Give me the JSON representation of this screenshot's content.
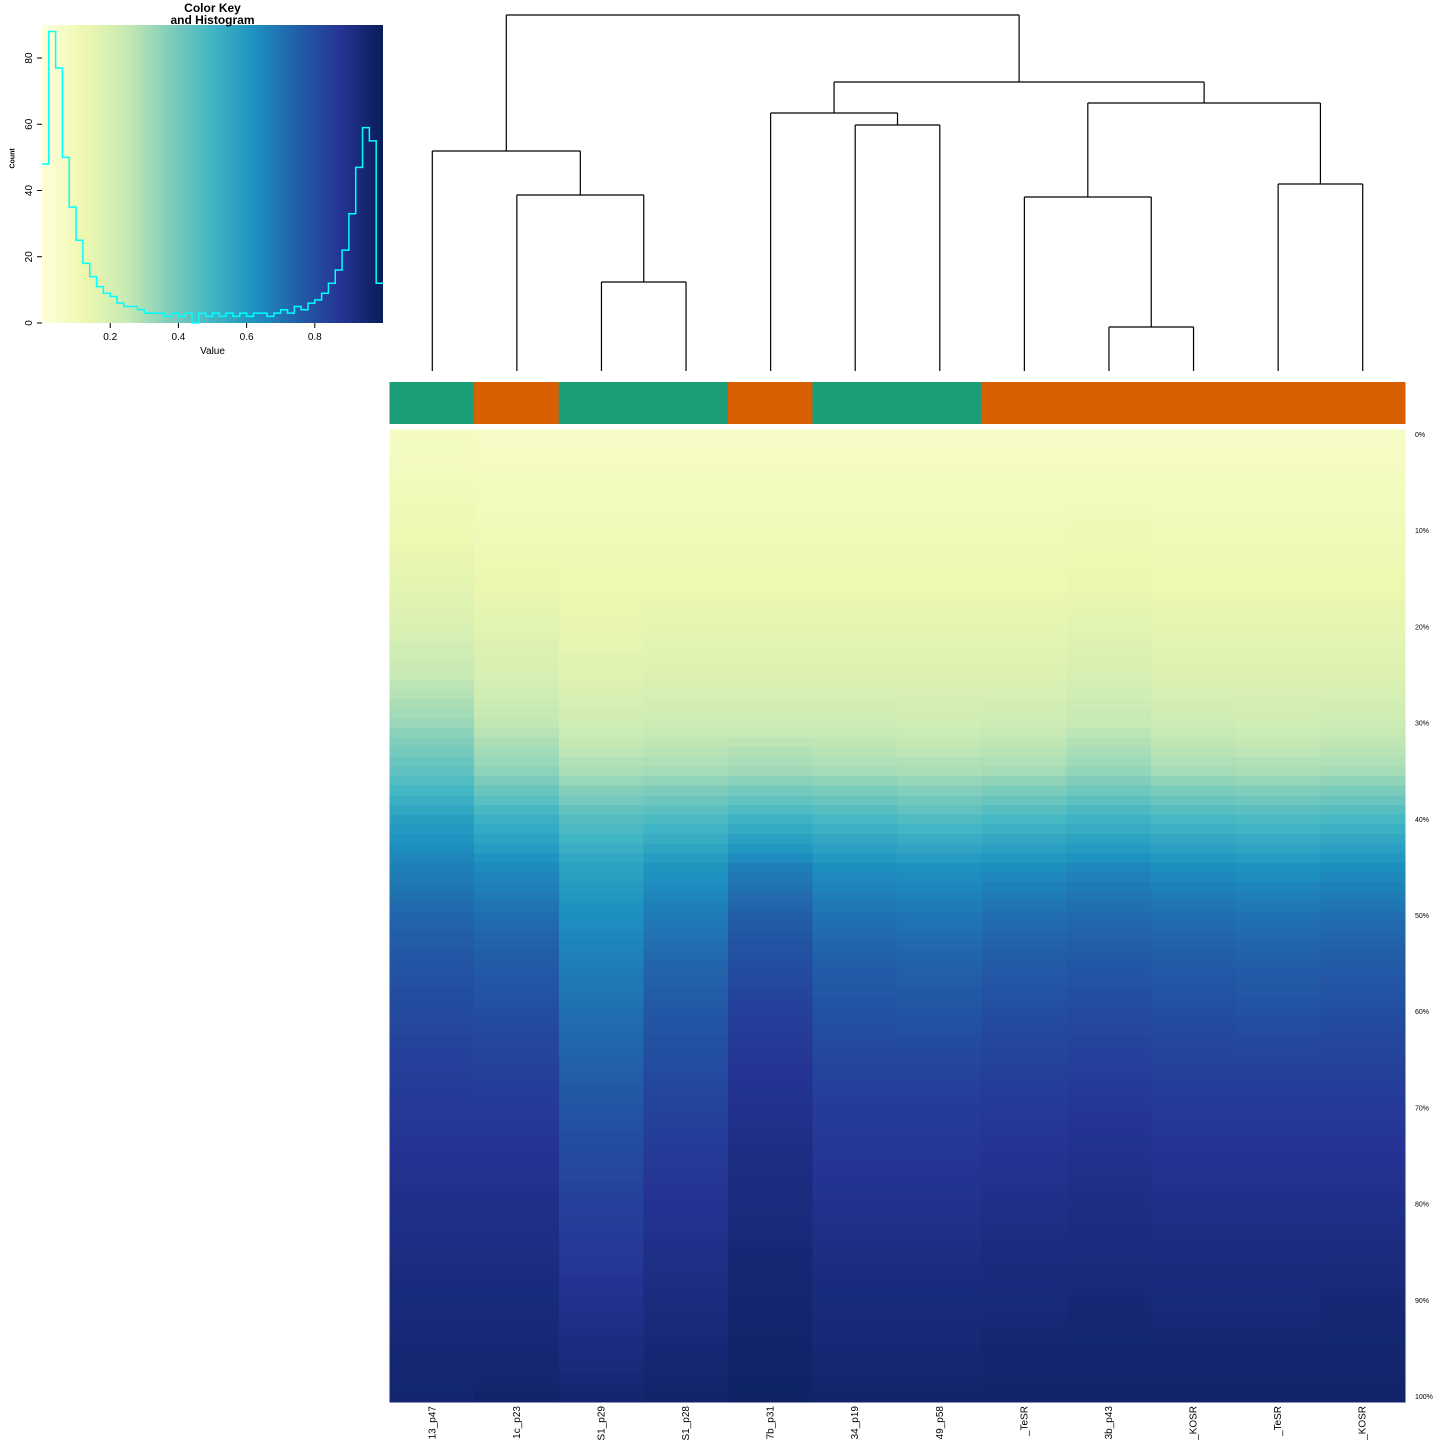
{
  "key": {
    "title_line1": "Color Key",
    "title_line2": "and Histogram",
    "xlabel": "Value",
    "ylabel": "Count",
    "x_tick_labels": [
      "0.2",
      "0.4",
      "0.6",
      "0.8"
    ],
    "x_tick_values": [
      0.2,
      0.4,
      0.6,
      0.8
    ],
    "y_tick_labels": [
      "0",
      "20",
      "40",
      "60",
      "80"
    ],
    "y_tick_values": [
      0,
      20,
      40,
      60,
      80
    ]
  },
  "palette": {
    "name": "YlGnBu",
    "stops": [
      "#ffffd9",
      "#edf8b1",
      "#c7e9b4",
      "#7fcdbb",
      "#41b6c4",
      "#1d91c0",
      "#225ea8",
      "#253494",
      "#081d58"
    ]
  },
  "side_color_legend": {
    "teal": "#1B9E77",
    "orange": "#D95F02"
  },
  "line_colors": {
    "histogram": "#00ffff",
    "dendrogram": "#000000"
  },
  "chart_data": [
    {
      "type": "bar",
      "title": "Color Key and Histogram",
      "xlabel": "Value",
      "ylabel": "Count",
      "style": "step-frequency-line over YlGnBu gradient strip",
      "xlim": [
        0,
        1
      ],
      "ylim": [
        0,
        88
      ],
      "bin_width": 0.02,
      "x": [
        0.01,
        0.03,
        0.05,
        0.07,
        0.09,
        0.11,
        0.13,
        0.15,
        0.17,
        0.19,
        0.21,
        0.23,
        0.25,
        0.27,
        0.29,
        0.31,
        0.33,
        0.35,
        0.37,
        0.39,
        0.41,
        0.43,
        0.45,
        0.47,
        0.49,
        0.51,
        0.53,
        0.55,
        0.57,
        0.59,
        0.61,
        0.63,
        0.65,
        0.67,
        0.69,
        0.71,
        0.73,
        0.75,
        0.77,
        0.79,
        0.81,
        0.83,
        0.85,
        0.87,
        0.89,
        0.91,
        0.93,
        0.95,
        0.97,
        0.99
      ],
      "values": [
        48,
        88,
        77,
        50,
        35,
        25,
        18,
        14,
        11,
        9,
        8,
        6,
        5,
        5,
        4,
        3,
        3,
        3,
        2,
        3,
        2,
        3,
        0,
        3,
        2,
        3,
        2,
        3,
        2,
        3,
        2,
        3,
        3,
        2,
        3,
        4,
        3,
        5,
        4,
        6,
        7,
        9,
        12,
        16,
        22,
        33,
        47,
        59,
        55,
        12
      ]
    },
    {
      "type": "heatmap",
      "description": "Column-wise cumulative value distribution: percentile (rows, 0-100%) vs value (color, YlGnBu 0-1)",
      "columns": [
        "13_p47",
        "1c_p23",
        "S1_p29",
        "S1_p28",
        "7b_p31",
        "34_p19",
        "49_p58",
        "_TeSR",
        "3b_p43",
        "_KOSR",
        "_TeSR",
        "_KOSR"
      ],
      "col_side_groups": [
        "teal",
        "orange",
        "teal",
        "teal",
        "orange",
        "teal",
        "teal",
        "orange",
        "orange",
        "orange",
        "orange",
        "orange"
      ],
      "row_labels": [
        "0%",
        "10%",
        "20%",
        "30%",
        "40%",
        "50%",
        "60%",
        "70%",
        "80%",
        "90%",
        "100%"
      ],
      "percentiles": [
        0,
        5,
        10,
        15,
        20,
        25,
        30,
        35,
        40,
        45,
        50,
        55,
        60,
        65,
        70,
        75,
        80,
        85,
        90,
        95,
        100
      ],
      "value_range": [
        0,
        1
      ],
      "values_by_column": [
        [
          0.07,
          0.09,
          0.12,
          0.15,
          0.19,
          0.25,
          0.33,
          0.44,
          0.58,
          0.67,
          0.73,
          0.78,
          0.81,
          0.84,
          0.86,
          0.88,
          0.9,
          0.91,
          0.93,
          0.94,
          0.95
        ],
        [
          0.06,
          0.08,
          0.1,
          0.13,
          0.16,
          0.2,
          0.26,
          0.35,
          0.52,
          0.64,
          0.71,
          0.76,
          0.8,
          0.83,
          0.86,
          0.88,
          0.9,
          0.91,
          0.93,
          0.94,
          0.96
        ],
        [
          0.06,
          0.08,
          0.1,
          0.12,
          0.14,
          0.17,
          0.22,
          0.3,
          0.46,
          0.57,
          0.63,
          0.67,
          0.71,
          0.74,
          0.78,
          0.81,
          0.84,
          0.86,
          0.89,
          0.92,
          0.95
        ],
        [
          0.06,
          0.08,
          0.1,
          0.12,
          0.15,
          0.18,
          0.23,
          0.31,
          0.48,
          0.61,
          0.68,
          0.73,
          0.77,
          0.8,
          0.83,
          0.86,
          0.88,
          0.9,
          0.92,
          0.94,
          0.96
        ],
        [
          0.06,
          0.08,
          0.1,
          0.12,
          0.15,
          0.18,
          0.23,
          0.32,
          0.51,
          0.67,
          0.75,
          0.8,
          0.84,
          0.87,
          0.89,
          0.91,
          0.92,
          0.94,
          0.95,
          0.96,
          0.97
        ],
        [
          0.06,
          0.08,
          0.1,
          0.12,
          0.15,
          0.18,
          0.23,
          0.31,
          0.49,
          0.63,
          0.7,
          0.75,
          0.79,
          0.82,
          0.85,
          0.87,
          0.89,
          0.91,
          0.93,
          0.94,
          0.96
        ],
        [
          0.06,
          0.08,
          0.1,
          0.12,
          0.15,
          0.18,
          0.22,
          0.3,
          0.47,
          0.62,
          0.69,
          0.74,
          0.78,
          0.82,
          0.85,
          0.87,
          0.89,
          0.91,
          0.93,
          0.94,
          0.96
        ],
        [
          0.06,
          0.08,
          0.1,
          0.12,
          0.15,
          0.18,
          0.23,
          0.31,
          0.49,
          0.63,
          0.71,
          0.76,
          0.8,
          0.83,
          0.86,
          0.88,
          0.9,
          0.92,
          0.93,
          0.95,
          0.96
        ],
        [
          0.06,
          0.08,
          0.11,
          0.13,
          0.16,
          0.2,
          0.25,
          0.34,
          0.51,
          0.65,
          0.72,
          0.77,
          0.81,
          0.84,
          0.87,
          0.89,
          0.91,
          0.92,
          0.94,
          0.95,
          0.96
        ],
        [
          0.06,
          0.08,
          0.1,
          0.12,
          0.15,
          0.18,
          0.23,
          0.31,
          0.49,
          0.63,
          0.71,
          0.76,
          0.8,
          0.83,
          0.86,
          0.88,
          0.9,
          0.92,
          0.93,
          0.95,
          0.96
        ],
        [
          0.06,
          0.08,
          0.1,
          0.12,
          0.15,
          0.18,
          0.22,
          0.3,
          0.48,
          0.62,
          0.7,
          0.75,
          0.79,
          0.83,
          0.86,
          0.88,
          0.9,
          0.92,
          0.93,
          0.95,
          0.96
        ],
        [
          0.06,
          0.08,
          0.1,
          0.12,
          0.15,
          0.18,
          0.23,
          0.31,
          0.49,
          0.63,
          0.71,
          0.76,
          0.8,
          0.83,
          0.86,
          0.88,
          0.9,
          0.92,
          0.94,
          0.95,
          0.96
        ]
      ],
      "dendrogram": {
        "orientation": "columns",
        "tree": {
          "y": 15,
          "children": [
            {
              "y": 151,
              "children": [
                {
                  "leaf": 0
                },
                {
                  "y": 195,
                  "children": [
                    {
                      "leaf": 1
                    },
                    {
                      "y": 282,
                      "children": [
                        {
                          "leaf": 2
                        },
                        {
                          "leaf": 3
                        }
                      ]
                    }
                  ]
                }
              ]
            },
            {
              "y": 82,
              "children": [
                {
                  "y": 113,
                  "children": [
                    {
                      "leaf": 4
                    },
                    {
                      "y": 125,
                      "children": [
                        {
                          "leaf": 5
                        },
                        {
                          "leaf": 6
                        }
                      ]
                    }
                  ]
                },
                {
                  "y": 103,
                  "children": [
                    {
                      "y": 197,
                      "children": [
                        {
                          "leaf": 7
                        },
                        {
                          "y": 327,
                          "children": [
                            {
                              "leaf": 8
                            },
                            {
                              "leaf": 9
                            }
                          ]
                        }
                      ]
                    },
                    {
                      "y": 184,
                      "children": [
                        {
                          "leaf": 10
                        },
                        {
                          "leaf": 11
                        }
                      ]
                    }
                  ]
                }
              ]
            }
          ]
        }
      }
    }
  ]
}
